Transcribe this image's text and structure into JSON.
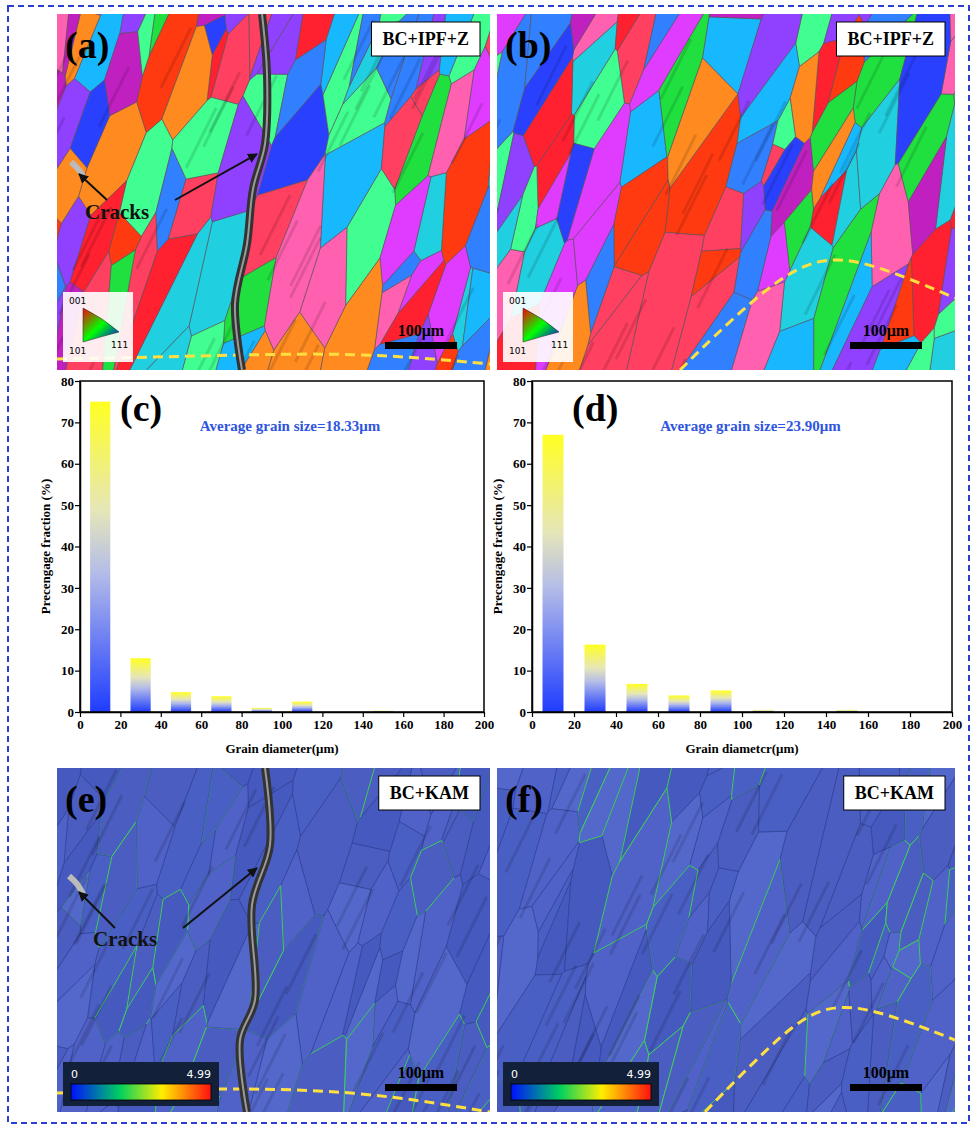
{
  "panels": [
    {
      "label": "(a)",
      "title": "BC+IPF+Z",
      "annotation": "Cracks",
      "scale_bar": "100μm",
      "ipf_key": [
        "001",
        "101",
        "111"
      ]
    },
    {
      "label": "(b)",
      "title": "BC+IPF+Z",
      "scale_bar": "100μm",
      "ipf_key": [
        "001",
        "101",
        "111"
      ]
    },
    {
      "label": "(e)",
      "title": "BC+KAM",
      "annotation": "Cracks",
      "scale_bar": "100μm",
      "colorbar_range": [
        0,
        4.99
      ],
      "colorbar_ticks": [
        0,
        4.99
      ]
    },
    {
      "label": "(f)",
      "title": "BC+KAM",
      "scale_bar": "100μm",
      "colorbar_range": [
        0,
        4.99
      ],
      "colorbar_ticks": [
        0,
        4.99
      ]
    }
  ],
  "chart_data": [
    {
      "type": "histogram",
      "panel_label": "(c)",
      "annotation": "Average grain size=18.33μm",
      "x_label": "Grain diameter(μm)",
      "y_label": "Precengage fraction (%)",
      "bins": [
        0,
        20,
        40,
        60,
        80,
        100,
        120,
        140,
        160,
        180,
        200
      ],
      "values": [
        75,
        13,
        4.8,
        3.8,
        1.0,
        2.5,
        0,
        0.3,
        0,
        0
      ],
      "xlim": [
        0,
        200
      ],
      "ylim": [
        0,
        80
      ],
      "xticks": [
        0,
        20,
        40,
        60,
        80,
        100,
        120,
        140,
        160,
        180,
        200
      ],
      "yticks": [
        0,
        10,
        20,
        30,
        40,
        50,
        60,
        70,
        80
      ]
    },
    {
      "type": "histogram",
      "panel_label": "(d)",
      "annotation": "Average grain size=23.90μm",
      "x_label": "Grain diametcr(μm)",
      "y_label": "Precengage fraction (%)",
      "bins": [
        0,
        20,
        40,
        60,
        80,
        100,
        120,
        140,
        160,
        180,
        200
      ],
      "values": [
        67,
        16.3,
        6.8,
        4.0,
        5.2,
        0.5,
        0,
        0.5,
        0,
        0
      ],
      "xlim": [
        0,
        200
      ],
      "ylim": [
        0,
        80
      ],
      "xticks": [
        0,
        20,
        40,
        60,
        80,
        100,
        120,
        140,
        160,
        180,
        200
      ],
      "yticks": [
        0,
        10,
        20,
        30,
        40,
        50,
        60,
        70,
        80
      ]
    }
  ]
}
